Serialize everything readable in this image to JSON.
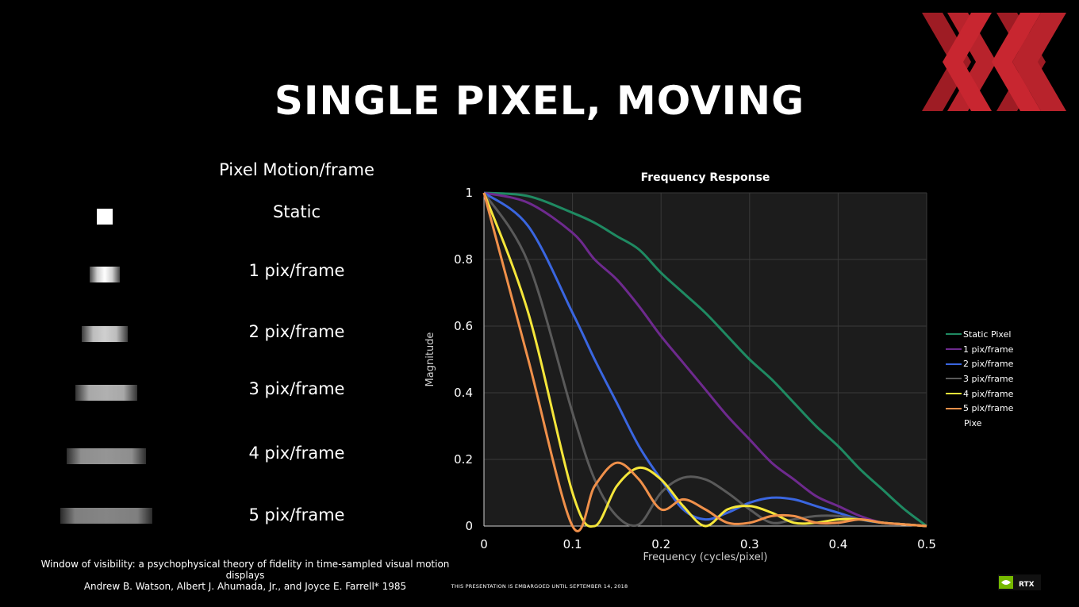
{
  "slide": {
    "title": "SINGLE PIXEL, MOVING",
    "motion_heading": "Pixel Motion/frame",
    "motion_labels": [
      "Static",
      "1 pix/frame",
      "2 pix/frame",
      "3 pix/frame",
      "4 pix/frame",
      "5 pix/frame"
    ],
    "citation_line1": "Window of visibility: a psychophysical theory of fidelity in time-sampled visual motion displays",
    "citation_line2": "Andrew B. Watson, Albert J. Ahumada, Jr., and Joyce E. Farrell* 1985",
    "embargo": "THIS PRESENTATION IS EMBARGOED UNTIL SEPTEMBER 14, 2018",
    "badge_text": "RTX",
    "logo_icon": "xx-logo-icon",
    "badge_icon": "geforce-rtx-badge-icon"
  },
  "chart_data": {
    "type": "line",
    "title": "Frequency Response",
    "xlabel": "Frequency (cycles/pixel)",
    "ylabel": "Magnitude",
    "xlim": [
      0,
      0.5
    ],
    "ylim": [
      0,
      1
    ],
    "xticks": [
      "0",
      "0.1",
      "0.2",
      "0.3",
      "0.4",
      "0.5"
    ],
    "yticks": [
      "0",
      "0.2",
      "0.4",
      "0.6",
      "0.8",
      "1"
    ],
    "grid": true,
    "legend_position": "right",
    "x": [
      0,
      0.05,
      0.1,
      0.125,
      0.15,
      0.175,
      0.2,
      0.225,
      0.25,
      0.275,
      0.3,
      0.325,
      0.35,
      0.375,
      0.4,
      0.425,
      0.45,
      0.475,
      0.5
    ],
    "series": [
      {
        "name": "Static Pixel",
        "color": "#1f8a62",
        "values": [
          1,
          0.99,
          0.94,
          0.91,
          0.87,
          0.83,
          0.76,
          0.7,
          0.64,
          0.57,
          0.5,
          0.44,
          0.37,
          0.3,
          0.24,
          0.17,
          0.11,
          0.05,
          0
        ]
      },
      {
        "name": "1 pix/frame",
        "color": "#6e2a8e",
        "values": [
          1,
          0.97,
          0.88,
          0.8,
          0.74,
          0.66,
          0.57,
          0.49,
          0.41,
          0.33,
          0.26,
          0.19,
          0.14,
          0.09,
          0.06,
          0.03,
          0.01,
          0.005,
          0
        ]
      },
      {
        "name": "2 pix/frame",
        "color": "#3a66e0",
        "values": [
          1,
          0.9,
          0.64,
          0.5,
          0.37,
          0.24,
          0.14,
          0.05,
          0.02,
          0.04,
          0.07,
          0.085,
          0.08,
          0.06,
          0.04,
          0.02,
          0.01,
          0.005,
          0
        ]
      },
      {
        "name": "3 pix/frame",
        "color": "#5a5a5a",
        "values": [
          1,
          0.79,
          0.34,
          0.14,
          0.03,
          0.005,
          0.1,
          0.145,
          0.14,
          0.1,
          0.05,
          0.01,
          0.02,
          0.03,
          0.03,
          0.02,
          0.01,
          0.005,
          0
        ]
      },
      {
        "name": "4 pix/frame",
        "color": "#f5e63a",
        "values": [
          1,
          0.64,
          0.1,
          0,
          0.12,
          0.175,
          0.14,
          0.06,
          0,
          0.05,
          0.06,
          0.04,
          0.01,
          0.01,
          0.02,
          0.02,
          0.01,
          0.005,
          0
        ]
      },
      {
        "name": "5 pix/frame",
        "color": "#f0904a",
        "values": [
          1,
          0.5,
          0,
          0.12,
          0.19,
          0.14,
          0.05,
          0.08,
          0.05,
          0.01,
          0.01,
          0.03,
          0.03,
          0.01,
          0.01,
          0.02,
          0.01,
          0.005,
          0
        ]
      }
    ],
    "extra_legend_text": "Pixe"
  }
}
